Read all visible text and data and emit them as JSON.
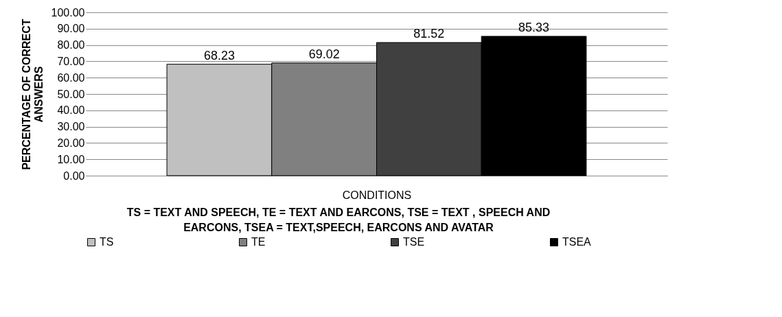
{
  "chart_data": {
    "type": "bar",
    "xlabel": "CONDITIONS",
    "ylabel": "PERCENTAGE OF CORRECT ANSWERS",
    "legend_title": "TS = TEXT AND SPEECH, TE = TEXT AND EARCONS, TSE = TEXT , SPEECH AND EARCONS, TSEA = TEXT,SPEECH, EARCONS AND AVATAR",
    "categories": [
      null
    ],
    "series": [
      {
        "name": "TS",
        "color": "#c0c0c0",
        "values": [
          68.23
        ]
      },
      {
        "name": "TE",
        "color": "#808080",
        "values": [
          69.02
        ]
      },
      {
        "name": "TSE",
        "color": "#404040",
        "values": [
          81.52
        ]
      },
      {
        "name": "TSEA",
        "color": "#000000",
        "values": [
          85.33
        ]
      }
    ],
    "ylim": [
      0,
      100
    ],
    "yticks": [
      {
        "value": 0,
        "label": "0.00"
      },
      {
        "value": 10,
        "label": "10.00"
      },
      {
        "value": 20,
        "label": "20.00"
      },
      {
        "value": 30,
        "label": "30.00"
      },
      {
        "value": 40,
        "label": "40.00"
      },
      {
        "value": 50,
        "label": "50.00"
      },
      {
        "value": 60,
        "label": "60.00"
      },
      {
        "value": 70,
        "label": "70.00"
      },
      {
        "value": 80,
        "label": "80.00"
      },
      {
        "value": 90,
        "label": "90.00"
      },
      {
        "value": 100,
        "label": "100.00"
      }
    ],
    "grid": "y",
    "legend": "bottom",
    "data_labels": true
  }
}
